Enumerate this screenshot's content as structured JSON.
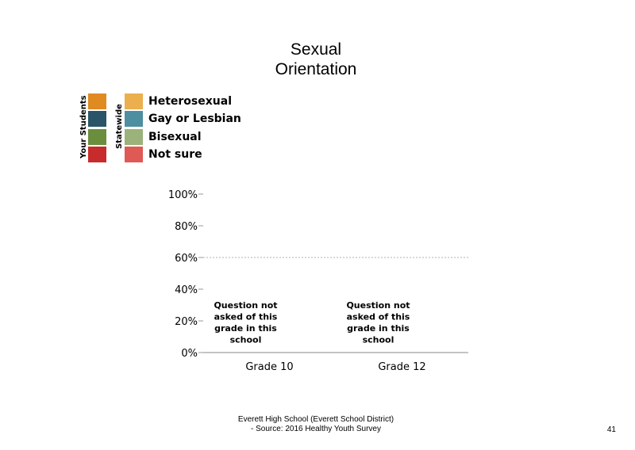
{
  "title_line1": "Sexual",
  "title_line2": "Orientation",
  "legend": {
    "your_students_label": "Your Students",
    "statewide_label": "Statewide",
    "items": [
      {
        "label": "Heterosexual",
        "your_color": "#E08A22",
        "state_color": "#EBAF4E"
      },
      {
        "label": "Gay or Lesbian",
        "your_color": "#2B5468",
        "state_color": "#4D8EA0"
      },
      {
        "label": "Bisexual",
        "your_color": "#6A8E3E",
        "state_color": "#9BB27A"
      },
      {
        "label": "Not sure",
        "your_color": "#C72B2B",
        "state_color": "#E05A55"
      }
    ]
  },
  "chart_data": {
    "type": "bar",
    "categories": [
      "Grade 10",
      "Grade 12"
    ],
    "series": [],
    "ylim": [
      0,
      100
    ],
    "y_ticks": [
      "0%",
      "20%",
      "40%",
      "60%",
      "80%",
      "100%"
    ],
    "y_tick_values": [
      0,
      20,
      40,
      60,
      80,
      100
    ],
    "reference_line": 60,
    "annotations": [
      [
        "Question not",
        "asked of this",
        "grade in this",
        "school"
      ],
      [
        "Question not",
        "asked of this",
        "grade in this",
        "school"
      ]
    ]
  },
  "footer": {
    "line1": "Everett High  School (Everett School District)",
    "line2": "- Source: 2016 Healthy  Youth Survey"
  },
  "page_number": "41"
}
